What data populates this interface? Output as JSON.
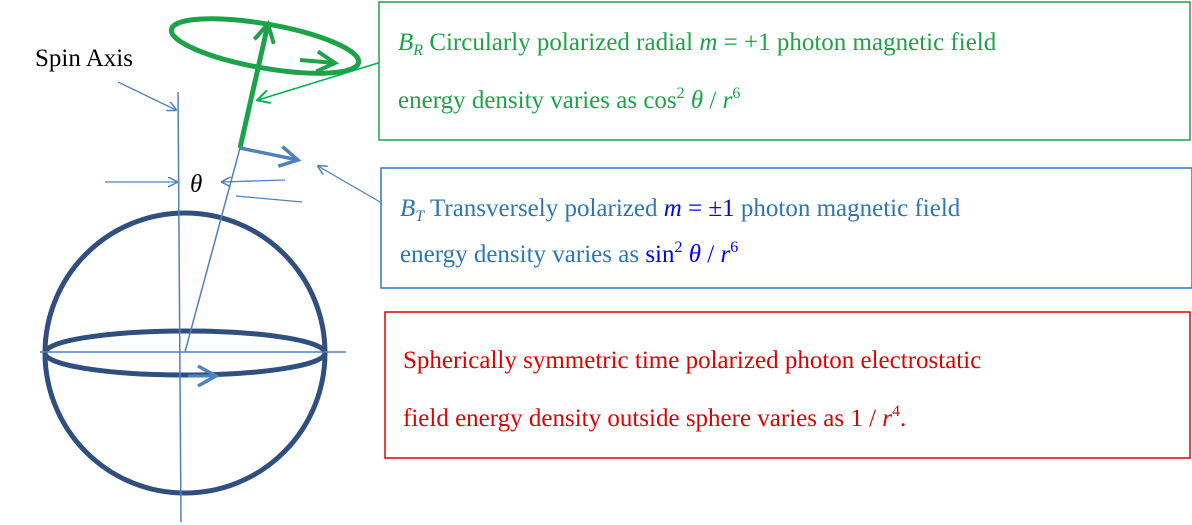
{
  "labels": {
    "spin_axis": "Spin Axis",
    "theta": "θ"
  },
  "boxes": {
    "radial": {
      "line1": [
        "B",
        "R",
        " Circularly polarized radial ",
        "m",
        " = +1",
        "  photon magnetic field"
      ],
      "line2": [
        "energy density varies as  ",
        "cos",
        "2",
        " θ",
        " / ",
        "r",
        "6"
      ]
    },
    "transverse": {
      "line1": [
        "B",
        "T",
        " Transversely  polarized  ",
        "m",
        " = ±1",
        "  photon  magnetic  field"
      ],
      "line2": [
        "energy density varies as  ",
        "sin",
        "2",
        " θ",
        " / ",
        "r",
        "6"
      ]
    },
    "time": {
      "line1": "Spherically  symmetric  time  polarized  photon  electrostatic",
      "line2": [
        "field energy density outside sphere varies as  ",
        "1 / ",
        "r",
        "4",
        "."
      ]
    }
  }
}
